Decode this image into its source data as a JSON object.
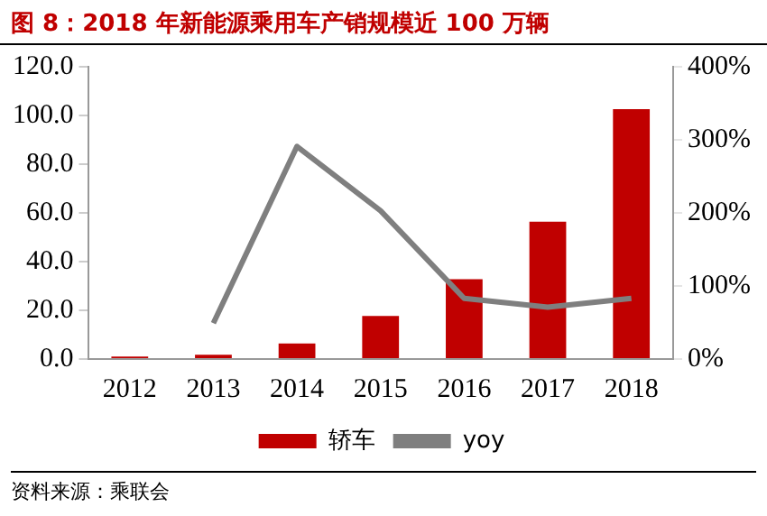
{
  "chart_data": {
    "type": "bar",
    "title": "图 8：2018 年新能源乘用车产销规模近 100 万辆",
    "categories": [
      "2012",
      "2013",
      "2014",
      "2015",
      "2016",
      "2017",
      "2018"
    ],
    "series": [
      {
        "name": "轿车",
        "color": "#c00000",
        "values": [
          1.0,
          1.8,
          6.4,
          17.7,
          32.8,
          56.4,
          102.6
        ]
      },
      {
        "name": "yoy",
        "type": "line",
        "axis": "y2",
        "color": "#7f7f7f",
        "values": [
          null,
          49,
          291,
          203,
          83,
          71,
          83
        ]
      }
    ],
    "ylim": [
      0,
      120
    ],
    "yticks": [
      {
        "value": 0,
        "label": "0.0"
      },
      {
        "value": 20,
        "label": "20.0"
      },
      {
        "value": 40,
        "label": "40.0"
      },
      {
        "value": 60,
        "label": "60.0"
      },
      {
        "value": 80,
        "label": "80.0"
      },
      {
        "value": 100,
        "label": "100.0"
      },
      {
        "value": 120,
        "label": "120.0"
      }
    ],
    "y2lim": [
      0,
      400
    ],
    "y2ticks": [
      {
        "value": 0,
        "label": "0%"
      },
      {
        "value": 100,
        "label": "100%"
      },
      {
        "value": 200,
        "label": "200%"
      },
      {
        "value": 300,
        "label": "300%"
      },
      {
        "value": 400,
        "label": "400%"
      }
    ],
    "grid": false,
    "legend": "bottom",
    "marker": "none",
    "annotations": [
      "资料来源：乘联会"
    ]
  }
}
